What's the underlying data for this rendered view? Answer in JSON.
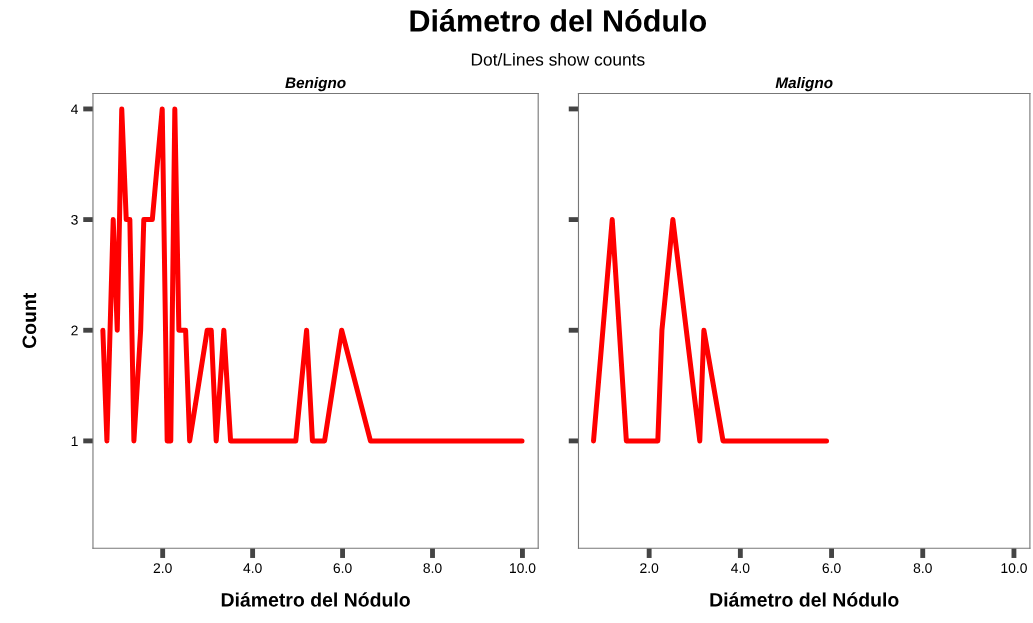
{
  "chart_data": [
    {
      "type": "line",
      "title": "Diámetro del Nódulo",
      "subtitle": "Dot/Lines show counts",
      "xlabel": "Diámetro del Nódulo",
      "ylabel": "Count",
      "xlim": [
        0.45,
        10.35
      ],
      "xticks": [
        {
          "value": 2,
          "label": "2.0"
        },
        {
          "value": 4,
          "label": "4.0"
        },
        {
          "value": 6,
          "label": "6.0"
        },
        {
          "value": 8,
          "label": "8.0"
        },
        {
          "value": 10,
          "label": "10.0"
        }
      ],
      "ylim": [
        0.03,
        4.14
      ],
      "yticks": [
        1,
        2,
        3,
        4
      ],
      "grid": false,
      "marker": "none",
      "series": [
        {
          "name": "Benigno",
          "color": "#ff0000",
          "x": [
            0.67,
            0.76,
            0.9,
            0.99,
            1.09,
            1.19,
            1.27,
            1.36,
            1.51,
            1.58,
            1.77,
            1.99,
            2.1,
            2.18,
            2.27,
            2.36,
            2.51,
            2.6,
            2.99,
            3.08,
            3.19,
            3.36,
            3.51,
            3.84,
            4.14,
            4.96,
            5.2,
            5.33,
            5.6,
            5.98,
            6.62,
            8.09,
            9.1,
            9.99
          ],
          "values": [
            2,
            1,
            3,
            2,
            4,
            3,
            3,
            1,
            2,
            3,
            3,
            4,
            1,
            1,
            4,
            2,
            2,
            1,
            2,
            2,
            1,
            2,
            1,
            1,
            1,
            1,
            2,
            1,
            1,
            2,
            1,
            1,
            1,
            1
          ]
        }
      ]
    },
    {
      "type": "line",
      "xlabel": "Diámetro del Nódulo",
      "xlim": [
        0.45,
        10.35
      ],
      "xticks": [
        {
          "value": 2,
          "label": "2.0"
        },
        {
          "value": 4,
          "label": "4.0"
        },
        {
          "value": 6,
          "label": "6.0"
        },
        {
          "value": 8,
          "label": "8.0"
        },
        {
          "value": 10,
          "label": "10.0"
        }
      ],
      "ylim": [
        0.03,
        4.14
      ],
      "yticks": [
        1,
        2,
        3,
        4
      ],
      "tick_labels": "x",
      "grid": false,
      "marker": "none",
      "series": [
        {
          "name": "Maligno",
          "color": "#ff0000",
          "x": [
            0.78,
            1.19,
            1.5,
            2.19,
            2.28,
            2.52,
            3.11,
            3.2,
            3.62,
            4.22,
            4.63,
            5.0,
            5.22,
            5.89
          ],
          "values": [
            1,
            3,
            1,
            1,
            2,
            3,
            1,
            2,
            1,
            1,
            1,
            1,
            1,
            1
          ]
        }
      ]
    }
  ]
}
